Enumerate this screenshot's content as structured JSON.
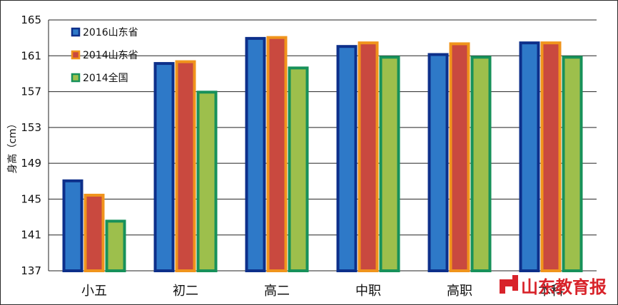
{
  "chart_data": {
    "type": "bar",
    "title": "",
    "xlabel": "",
    "ylabel": "身高（cm）",
    "ylim": [
      137,
      165
    ],
    "yticks": [
      137,
      141,
      145,
      149,
      153,
      157,
      161,
      165
    ],
    "grid": true,
    "legend_position": "top-left",
    "categories": [
      "小五",
      "初二",
      "高二",
      "中职",
      "高职",
      "本科"
    ],
    "series": [
      {
        "name": "2016山东省",
        "fill": "#2e79c8",
        "border": "#0d2f8a",
        "values": [
          147.2,
          160.3,
          163.1,
          162.2,
          161.3,
          162.6
        ]
      },
      {
        "name": "2014山东省",
        "fill": "#c9493f",
        "border": "#f0941c",
        "values": [
          145.6,
          160.5,
          163.2,
          162.6,
          162.5,
          162.6
        ]
      },
      {
        "name": "2014全国",
        "fill": "#9dbf4c",
        "border": "#17915a",
        "values": [
          142.7,
          157.1,
          159.8,
          161.0,
          161.0,
          161.0
        ]
      }
    ]
  },
  "watermark": {
    "text": "山东教育报",
    "color": "#d8232a"
  }
}
